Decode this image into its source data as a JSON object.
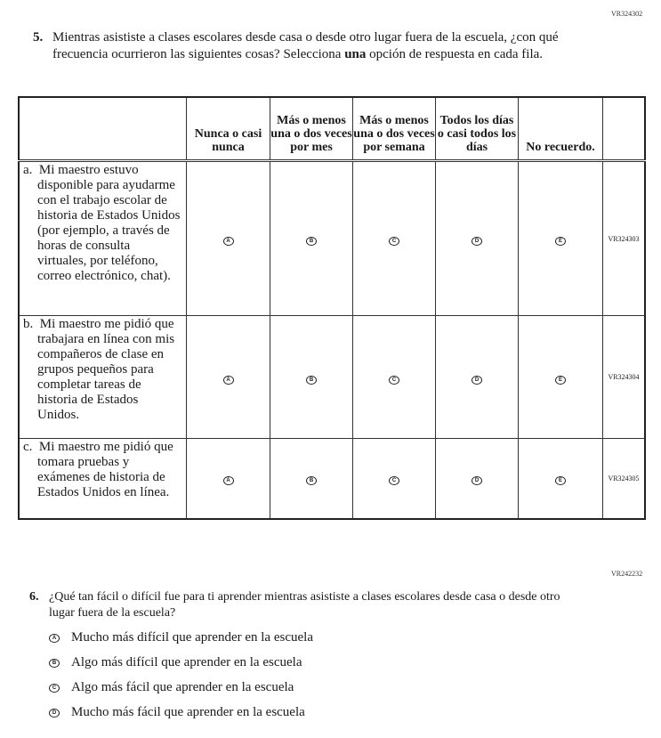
{
  "q5": {
    "code": "VR324302",
    "number": "5.",
    "text_before": "Mientras asististe a clases escolares desde casa o desde otro lugar fuera de la escuela, ¿con qué frecuencia ocurrieron las siguientes cosas? Selecciona ",
    "text_bold": "una",
    "text_after": " opción de respuesta en cada fila.",
    "columns": [
      "Nunca o casi nunca",
      "Más o menos una o dos veces por mes",
      "Más o menos una o dos veces por semana",
      "Todos los días o casi todos los días",
      "No recuerdo."
    ],
    "bubbles": [
      "A",
      "B",
      "C",
      "D",
      "E"
    ],
    "rows": [
      {
        "letter": "a.",
        "text": "Mi maestro estuvo disponible para ayudarme con el trabajo escolar de historia de Estados Unidos (por ejemplo, a través de horas de consulta virtuales, por teléfono, correo electrónico, chat).",
        "code": "VR324303"
      },
      {
        "letter": "b.",
        "text": "Mi maestro me pidió que trabajara en línea con mis compañeros de clase en grupos pequeños para completar tareas de historia de Estados Unidos.",
        "code": "VR324304"
      },
      {
        "letter": "c.",
        "text": "Mi maestro me pidió que tomara pruebas y exámenes de historia de Estados Unidos en línea.",
        "code": "VR324305"
      }
    ]
  },
  "q6": {
    "code": "VR242232",
    "number": "6.",
    "text": "¿Qué tan fácil o difícil fue para ti aprender mientras asististe a clases escolares desde casa o desde otro lugar fuera de la escuela?",
    "options": [
      {
        "letter": "A",
        "text": "Mucho más difícil que aprender en la escuela"
      },
      {
        "letter": "B",
        "text": "Algo más difícil que aprender en la escuela"
      },
      {
        "letter": "C",
        "text": "Algo más fácil que aprender en la escuela"
      },
      {
        "letter": "D",
        "text": "Mucho más fácil que aprender en la escuela"
      }
    ]
  }
}
